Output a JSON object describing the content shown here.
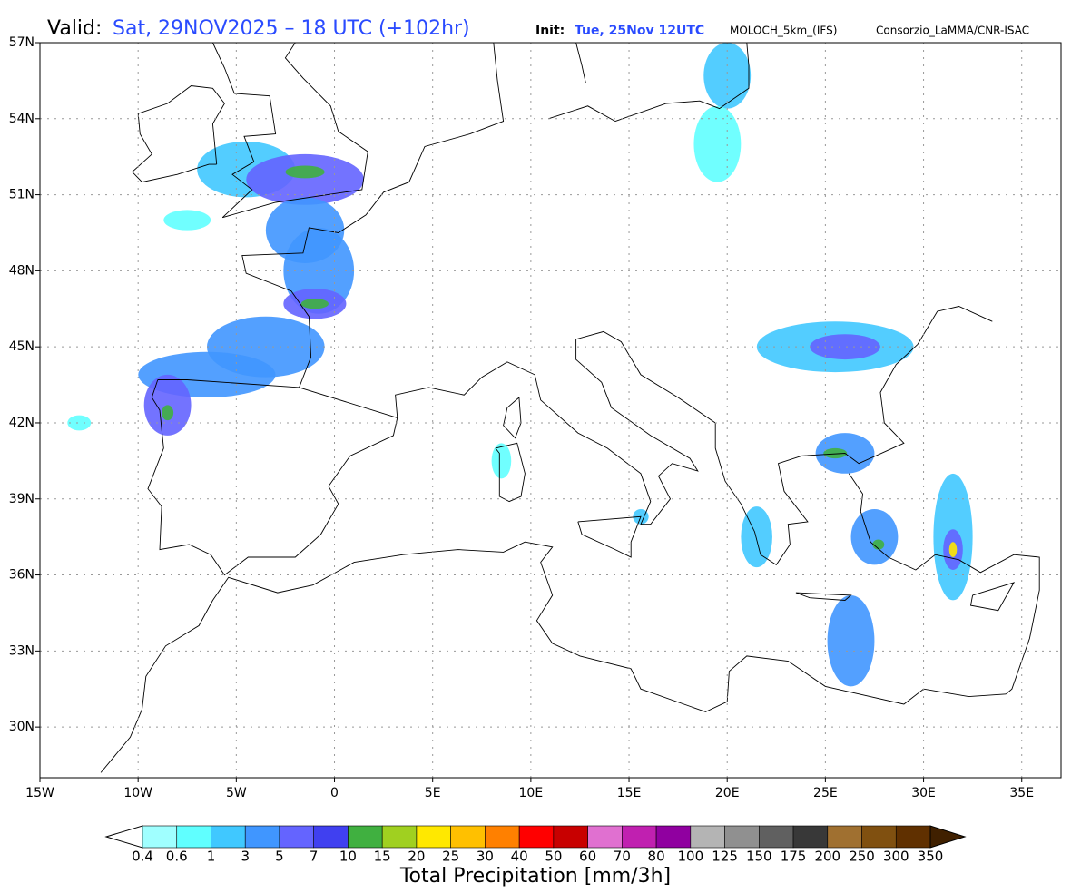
{
  "header": {
    "valid_label": "Valid:",
    "valid_time": "Sat, 29NOV2025 – 18 UTC (+102hr)",
    "init_label": "Init:",
    "init_time": "Tue, 25Nov 12UTC",
    "model": "MOLOCH_5km_(IFS)",
    "credit": "Consorzio_LaMMA/CNR-ISAC"
  },
  "map": {
    "xlim": [
      -15,
      37
    ],
    "ylim": [
      28,
      57
    ],
    "grid": true,
    "xticks": [
      {
        "value": -15,
        "label": "15W"
      },
      {
        "value": -10,
        "label": "10W"
      },
      {
        "value": -5,
        "label": "5W"
      },
      0,
      {
        "value": 5,
        "label": "5E"
      },
      {
        "value": 10,
        "label": "10E"
      },
      {
        "value": 15,
        "label": "15E"
      },
      {
        "value": 20,
        "label": "20E"
      },
      {
        "value": 25,
        "label": "25E"
      },
      {
        "value": 30,
        "label": "30E"
      },
      {
        "value": 35,
        "label": "35E"
      }
    ],
    "yticks": [
      {
        "value": 30,
        "label": "30N"
      },
      {
        "value": 33,
        "label": "33N"
      },
      {
        "value": 36,
        "label": "36N"
      },
      {
        "value": 39,
        "label": "39N"
      },
      {
        "value": 42,
        "label": "42N"
      },
      {
        "value": 45,
        "label": "45N"
      },
      {
        "value": 48,
        "label": "48N"
      },
      {
        "value": 51,
        "label": "51N"
      },
      {
        "value": 54,
        "label": "54N"
      },
      {
        "value": 57,
        "label": "57N"
      }
    ]
  },
  "colorbar": {
    "title": "Total Precipitation [mm/3h]",
    "labels": [
      0.4,
      0.6,
      1,
      3,
      5,
      7,
      10,
      15,
      20,
      25,
      30,
      40,
      50,
      60,
      70,
      80,
      100,
      125,
      150,
      175,
      200,
      250,
      300,
      350
    ],
    "colors": [
      "#a0ffff",
      "#60ffff",
      "#40c8ff",
      "#4096ff",
      "#6464ff",
      "#4040f0",
      "#40b040",
      "#a0d020",
      "#ffe800",
      "#ffc000",
      "#ff8000",
      "#ff0000",
      "#c80000",
      "#e070d0",
      "#c020b0",
      "#9000a0",
      "#b4b4b4",
      "#909090",
      "#606060",
      "#383838",
      "#a07030",
      "#805010",
      "#603000"
    ],
    "under_color": "#ffffff",
    "over_color": "#402000"
  }
}
